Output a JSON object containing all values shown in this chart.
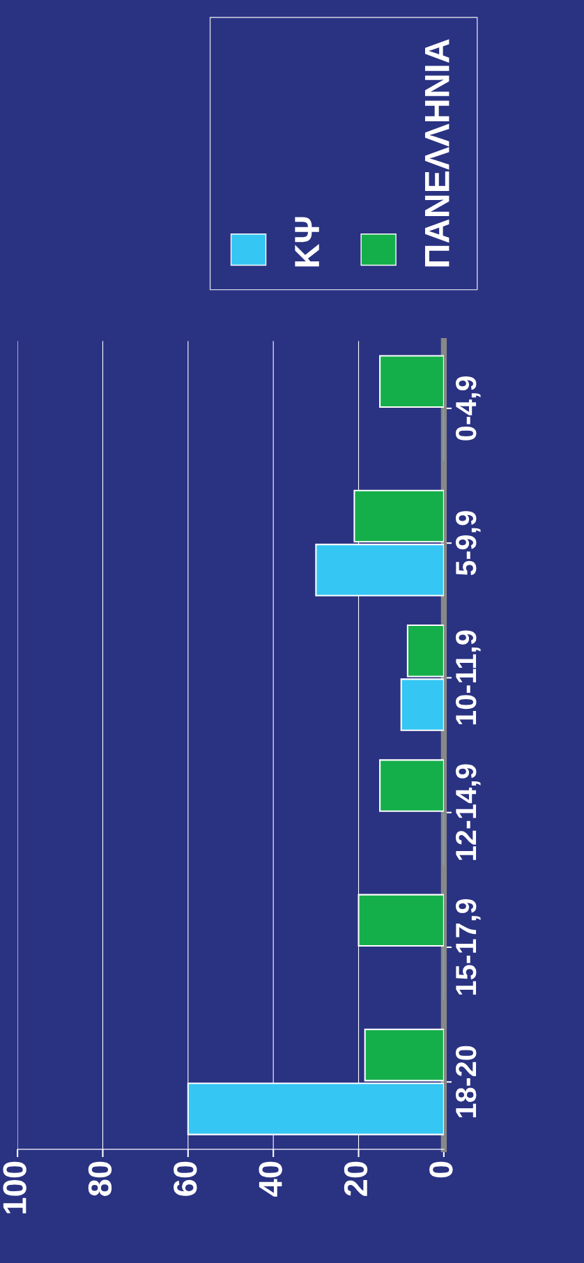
{
  "chart_data": {
    "type": "bar",
    "orientation": "horizontal",
    "categories": [
      "0-4,9",
      "5-9,9",
      "10-11,9",
      "12-14,9",
      "15-17,9",
      "18-20"
    ],
    "series": [
      {
        "name": "ΚΨ",
        "color": "#35c6f4",
        "values": [
          0,
          30,
          10,
          0,
          0,
          60
        ]
      },
      {
        "name": "ΠΑΝΕΛΛΗΝΙΑ",
        "color": "#14af4a",
        "values": [
          15,
          21,
          8.5,
          15,
          20,
          18.5
        ]
      }
    ],
    "xlim": [
      100,
      0
    ],
    "xticks": [
      0,
      20,
      40,
      60,
      80,
      100
    ],
    "grid": "x",
    "legend": "top right"
  }
}
